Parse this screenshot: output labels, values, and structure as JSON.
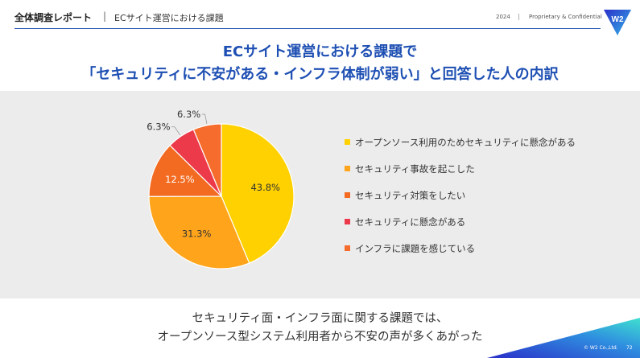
{
  "header": {
    "title": "全体調査レポート",
    "separator": "|",
    "subtitle": "ECサイト運営における課題",
    "year": "2024",
    "separator2": "|",
    "confidential": "Proprietary & Confidential",
    "logo_text": "W2"
  },
  "headline": {
    "line1": "ECサイト運営における課題で",
    "line2": "「セキュリティに不安がある・インフラ体制が弱い」と回答した人の内訳"
  },
  "chart_data": {
    "type": "pie",
    "title": "",
    "categories": [
      "オープンソース利用のためセキュリティに懸念がある",
      "セキュリティ事故を起こした",
      "セキュリティ対策をしたい",
      "セキュリティに懸念がある",
      "インフラに課題を感じている"
    ],
    "values": [
      43.8,
      31.3,
      12.5,
      6.3,
      6.3
    ],
    "data_labels": [
      "43.8%",
      "31.3%",
      "12.5%",
      "6.3%",
      "6.3%"
    ],
    "colors": [
      "#FFD100",
      "#FFA41B",
      "#F26B21",
      "#EC3A4A",
      "#F56C2C"
    ],
    "legend_position": "right",
    "start_angle_deg": 0,
    "direction": "clockwise"
  },
  "conclusion": {
    "line1": "セキュリティ面・インフラ面に関する課題では、",
    "line2": "オープンソース型システム利用者から不安の声が多くあがった"
  },
  "footer": {
    "copyright": "© W2 Co.,Ltd.",
    "page_number": "72"
  }
}
